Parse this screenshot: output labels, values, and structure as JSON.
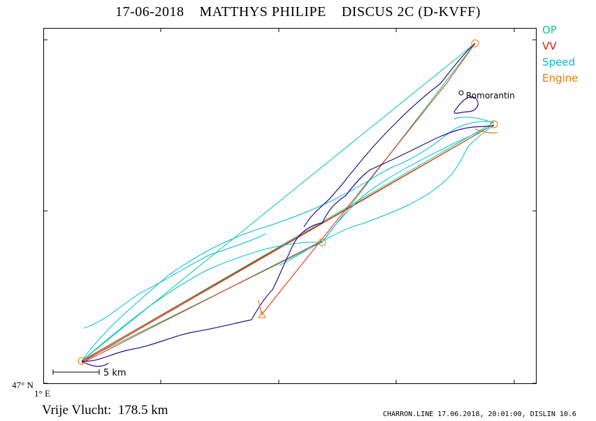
{
  "header": {
    "title": "17-06-2018    MATTHYS PHILIPE    DISCUS 2C (D-KVFF)"
  },
  "legend": {
    "items": [
      {
        "label": "OP",
        "color": "#00cc88"
      },
      {
        "label": "VV",
        "color": "#dd2200"
      },
      {
        "label": "Speed",
        "color": "#00bbdd"
      },
      {
        "label": "Engine",
        "color": "#ee7700"
      }
    ]
  },
  "axes": {
    "lat_label": "47° N",
    "lon_label": "1° E"
  },
  "scale": {
    "label": "5  km"
  },
  "places": [
    {
      "name": "Romorantin"
    }
  ],
  "summary": {
    "distance": "Vrije Vlucht:  178.5 km"
  },
  "footer": {
    "credit": "CHARRON.LINE 17.06.2018, 20:01:00, DISLIN 10.6"
  },
  "colors": {
    "track": "#2a0a8a",
    "speed_track": "#00bbdd",
    "frame": "#000000"
  }
}
